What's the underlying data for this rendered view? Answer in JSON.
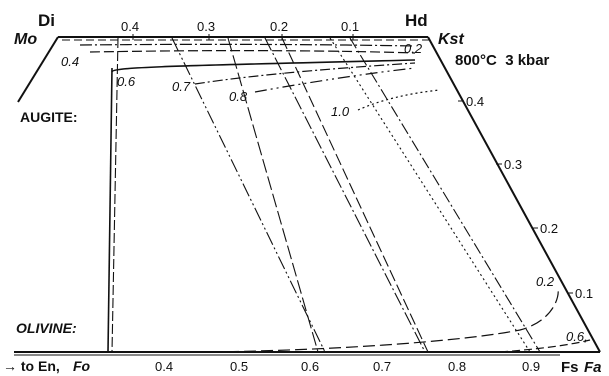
{
  "corners": {
    "di": "Di",
    "hd": "Hd",
    "mo": "Mo",
    "kst": "Kst",
    "fs": "Fs",
    "fa": "Fa"
  },
  "conditions": "800°C  3 kbar",
  "section_labels": {
    "augite": "AUGITE:",
    "olivine": "OLIVINE:",
    "to_en": "→ to En,",
    "fo": "Fo"
  },
  "top_ticks": [
    "0.4",
    "0.3",
    "0.2",
    "0.1"
  ],
  "bottom_ticks": [
    "0.4",
    "0.5",
    "0.6",
    "0.7",
    "0.8",
    "0.9"
  ],
  "right_ticks": [
    "0.4",
    "0.3",
    "0.2",
    "0.1"
  ],
  "contour_labels": {
    "c02_top": "0.2",
    "c04": "0.4",
    "c06": "0.6",
    "c07": "0.7",
    "c08": "0.8",
    "c10": "1.0",
    "c02_right": "0.2",
    "c06_right": "0.6,"
  }
}
